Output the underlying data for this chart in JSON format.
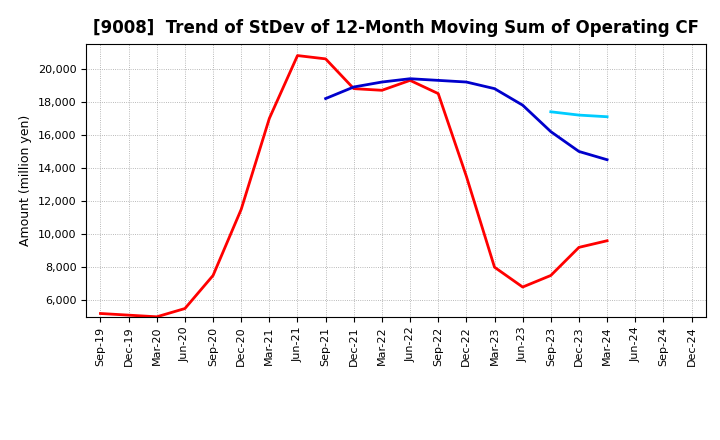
{
  "title": "[9008]  Trend of StDev of 12-Month Moving Sum of Operating CF",
  "ylabel": "Amount (million yen)",
  "background_color": "#ffffff",
  "grid_color": "#999999",
  "x_labels": [
    "Sep-19",
    "Dec-19",
    "Mar-20",
    "Jun-20",
    "Sep-20",
    "Dec-20",
    "Mar-21",
    "Jun-21",
    "Sep-21",
    "Dec-21",
    "Mar-22",
    "Jun-22",
    "Sep-22",
    "Dec-22",
    "Mar-23",
    "Jun-23",
    "Sep-23",
    "Dec-23",
    "Mar-24",
    "Jun-24",
    "Sep-24",
    "Dec-24"
  ],
  "series_3y": {
    "color": "#ff0000",
    "x": [
      0,
      1,
      2,
      3,
      4,
      5,
      6,
      7,
      8,
      9,
      10,
      11,
      12,
      13,
      14,
      15,
      16,
      17,
      18
    ],
    "y": [
      5200,
      5100,
      5000,
      5500,
      7500,
      11500,
      17000,
      20800,
      20600,
      18800,
      18700,
      19300,
      18500,
      13500,
      8000,
      6800,
      7500,
      9200,
      9600
    ]
  },
  "series_5y": {
    "color": "#0000cc",
    "x": [
      8,
      9,
      10,
      11,
      12,
      13,
      14,
      15,
      16,
      17,
      18
    ],
    "y": [
      18200,
      18900,
      19200,
      19400,
      19300,
      19200,
      18800,
      17800,
      16200,
      15000,
      14500
    ]
  },
  "series_7y": {
    "color": "#00ccff",
    "x": [
      16,
      17,
      18
    ],
    "y": [
      17400,
      17200,
      17100
    ]
  },
  "series_10y": {
    "color": "#006600",
    "x": [],
    "y": []
  },
  "ylim": [
    5000,
    21500
  ],
  "yticks": [
    6000,
    8000,
    10000,
    12000,
    14000,
    16000,
    18000,
    20000
  ],
  "title_fontsize": 12,
  "axis_fontsize": 8,
  "legend_fontsize": 9
}
